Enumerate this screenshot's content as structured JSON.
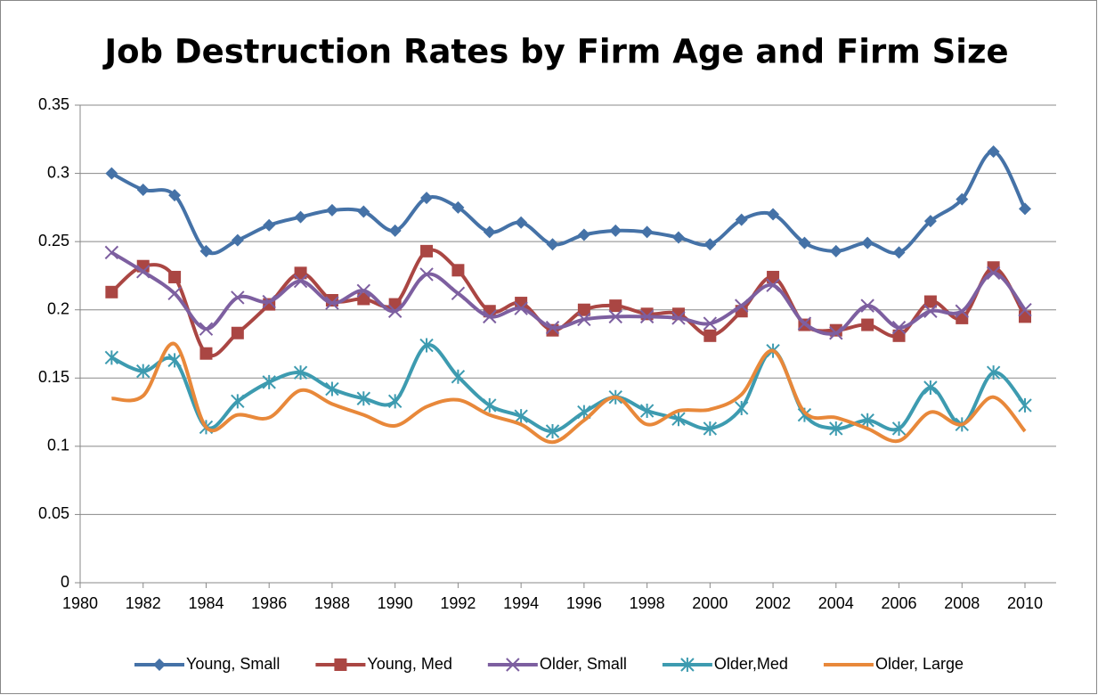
{
  "chart_data": {
    "type": "line",
    "title": "Job Destruction Rates by Firm Age and Firm Size",
    "x": [
      1981,
      1982,
      1983,
      1984,
      1985,
      1986,
      1987,
      1988,
      1989,
      1990,
      1991,
      1992,
      1993,
      1994,
      1995,
      1996,
      1997,
      1998,
      1999,
      2000,
      2001,
      2002,
      2003,
      2004,
      2005,
      2006,
      2007,
      2008,
      2009,
      2010
    ],
    "xlim": [
      1980,
      2010
    ],
    "xticks": [
      1980,
      1982,
      1984,
      1986,
      1988,
      1990,
      1992,
      1994,
      1996,
      1998,
      2000,
      2002,
      2004,
      2006,
      2008,
      2010
    ],
    "ylim": [
      0,
      0.35
    ],
    "yticks": [
      0,
      0.05,
      0.1,
      0.15,
      0.2,
      0.25,
      0.3,
      0.35
    ],
    "grid": true,
    "smooth": true,
    "legend": "bottom",
    "series": [
      {
        "name": "Young, Small",
        "color": "#4572a7",
        "marker": "diamond",
        "values": [
          0.3,
          0.288,
          0.284,
          0.243,
          0.251,
          0.262,
          0.268,
          0.273,
          0.272,
          0.258,
          0.282,
          0.275,
          0.257,
          0.264,
          0.248,
          0.255,
          0.258,
          0.257,
          0.253,
          0.248,
          0.266,
          0.27,
          0.249,
          0.243,
          0.249,
          0.242,
          0.265,
          0.281,
          0.316,
          0.274
        ]
      },
      {
        "name": "Young, Med",
        "color": "#aa4643",
        "marker": "square",
        "values": [
          0.213,
          0.232,
          0.224,
          0.168,
          0.183,
          0.204,
          0.227,
          0.207,
          0.208,
          0.204,
          0.243,
          0.229,
          0.199,
          0.205,
          0.185,
          0.2,
          0.203,
          0.197,
          0.197,
          0.181,
          0.199,
          0.224,
          0.189,
          0.185,
          0.189,
          0.181,
          0.206,
          0.194,
          0.231,
          0.195
        ]
      },
      {
        "name": "Older, Small",
        "color": "#7d5fa0",
        "marker": "x",
        "values": [
          0.242,
          0.228,
          0.212,
          0.186,
          0.209,
          0.206,
          0.221,
          0.205,
          0.214,
          0.199,
          0.226,
          0.212,
          0.195,
          0.201,
          0.187,
          0.193,
          0.195,
          0.195,
          0.194,
          0.19,
          0.203,
          0.218,
          0.19,
          0.183,
          0.203,
          0.187,
          0.199,
          0.199,
          0.227,
          0.2
        ]
      },
      {
        "name": "Older,Med",
        "color": "#3d9bb0",
        "marker": "star",
        "values": [
          0.165,
          0.155,
          0.163,
          0.114,
          0.133,
          0.147,
          0.154,
          0.142,
          0.135,
          0.133,
          0.174,
          0.151,
          0.13,
          0.122,
          0.111,
          0.125,
          0.136,
          0.126,
          0.12,
          0.113,
          0.128,
          0.17,
          0.123,
          0.113,
          0.119,
          0.113,
          0.143,
          0.116,
          0.154,
          0.13
        ]
      },
      {
        "name": "Older, Large",
        "color": "#e8883a",
        "marker": "none",
        "values": [
          0.135,
          0.137,
          0.175,
          0.114,
          0.123,
          0.121,
          0.141,
          0.131,
          0.123,
          0.115,
          0.129,
          0.134,
          0.123,
          0.116,
          0.103,
          0.119,
          0.136,
          0.116,
          0.126,
          0.127,
          0.138,
          0.17,
          0.125,
          0.121,
          0.113,
          0.104,
          0.125,
          0.116,
          0.136,
          0.111
        ]
      }
    ]
  }
}
